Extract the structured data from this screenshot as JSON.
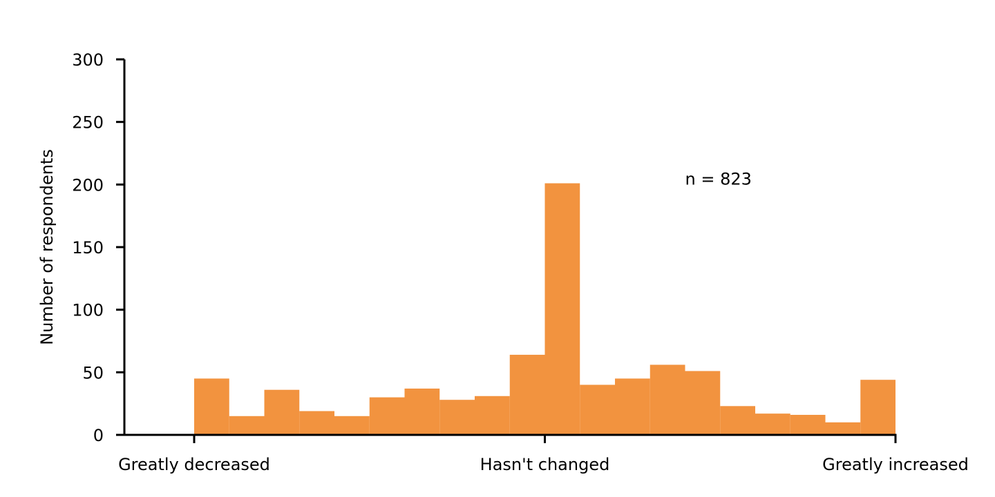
{
  "chart_data": {
    "type": "bar",
    "title": "",
    "xlabel": "",
    "ylabel": "Number of respondents",
    "ylim": [
      0,
      300
    ],
    "yticks": [
      0,
      50,
      100,
      150,
      200,
      250,
      300
    ],
    "xlim": [
      -1,
      1
    ],
    "xticks": [
      {
        "value": -1,
        "label": "Greatly decreased"
      },
      {
        "value": 0,
        "label": "Hasn't changed"
      },
      {
        "value": 1,
        "label": "Greatly increased"
      }
    ],
    "bin_edges": [
      -1.0,
      -0.9,
      -0.8,
      -0.7,
      -0.6,
      -0.5,
      -0.4,
      -0.3,
      -0.2,
      -0.1,
      0.0,
      0.1,
      0.2,
      0.3,
      0.4,
      0.5,
      0.6,
      0.7,
      0.8,
      0.9,
      1.0
    ],
    "values": [
      45,
      15,
      36,
      19,
      15,
      30,
      37,
      28,
      31,
      64,
      201,
      40,
      45,
      56,
      51,
      23,
      17,
      16,
      10,
      44
    ],
    "color": "#f2933f",
    "annotation": "n = 823",
    "annotation_at": [
      0.4,
      200
    ],
    "grid": false
  }
}
